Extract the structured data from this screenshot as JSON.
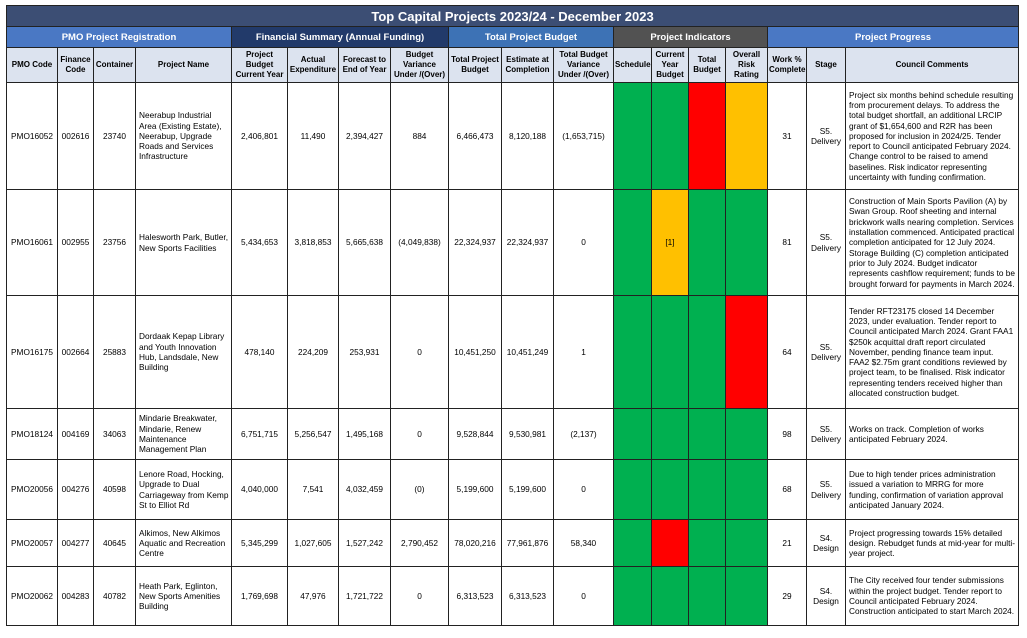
{
  "title": "Top Capital Projects 2023/24 - December 2023",
  "groups": {
    "registration": "PMO Project Registration",
    "financial": "Financial Summary (Annual Funding)",
    "total_budget": "Total Project Budget",
    "indicators": "Project Indicators",
    "progress": "Project Progress"
  },
  "columns": {
    "pmo_code": "PMO Code",
    "finance_code": "Finance Code",
    "container": "Container",
    "project_name": "Project Name",
    "budget_current_year": "Project Budget Current Year",
    "actual_expenditure": "Actual Expenditure",
    "forecast": "Forecast to End of Year",
    "budget_variance": "Budget Variance Under /(Over)",
    "total_project_budget": "Total Project Budget",
    "estimate_completion": "Estimate at Completion",
    "total_budget_variance": "Total Budget Variance Under /(Over)",
    "schedule": "Schedule",
    "current_year_budget": "Current Year Budget",
    "total_budget": "Total Budget",
    "overall_risk": "Overall Risk Rating",
    "work_complete": "Work % Complete",
    "stage": "Stage",
    "comments": "Council Comments"
  },
  "rows": [
    {
      "pmo": "PMO16052",
      "finance": "002616",
      "container": "23740",
      "name": "Neerabup Industrial Area (Existing Estate), Neerabup, Upgrade Roads and Services Infrastructure",
      "budget_cy": "2,406,801",
      "actual": "11,490",
      "forecast": "2,394,427",
      "variance": "884",
      "variance_neg": false,
      "total_budget": "6,466,473",
      "estimate": "8,120,188",
      "total_variance": "(1,653,715)",
      "total_variance_neg": true,
      "ind_schedule": "green",
      "ind_cy_budget": "green",
      "ind_total_budget": "red",
      "ind_risk": "amber",
      "ind_cy_note": "",
      "work": "31",
      "stage": "S5. Delivery",
      "comment": "Project six months behind schedule resulting from procurement delays. To address the total budget shortfall, an additional LRCIP grant of $1,654,600 and R2R has been proposed for inclusion in 2024/25. Tender report to Council anticipated February 2024. Change control to be raised to amend baselines. Risk indicator representing uncertainty with funding confirmation."
    },
    {
      "pmo": "PMO16061",
      "finance": "002955",
      "container": "23756",
      "name": "Halesworth Park, Butler, New Sports Facilities",
      "budget_cy": "5,434,653",
      "actual": "3,818,853",
      "forecast": "5,665,638",
      "variance": "(4,049,838)",
      "variance_neg": true,
      "total_budget": "22,324,937",
      "estimate": "22,324,937",
      "total_variance": "0",
      "total_variance_neg": false,
      "ind_schedule": "green",
      "ind_cy_budget": "amber",
      "ind_total_budget": "green",
      "ind_risk": "green",
      "ind_cy_note": "[1]",
      "work": "81",
      "stage": "S5. Delivery",
      "comment": "Construction of Main Sports Pavilion (A) by Swan Group. Roof sheeting and internal brickwork walls nearing completion. Services installation commenced. Anticipated practical completion anticipated for 12 July 2024. Storage Building (C) completion anticipated prior to July 2024. Budget indicator represents cashflow requirement; funds to be brought forward for payments in March 2024."
    },
    {
      "pmo": "PMO16175",
      "finance": "002664",
      "container": "25883",
      "name": "Dordaak Kepap Library and Youth Innovation Hub, Landsdale, New Building",
      "budget_cy": "478,140",
      "actual": "224,209",
      "forecast": "253,931",
      "variance": "0",
      "variance_neg": false,
      "total_budget": "10,451,250",
      "estimate": "10,451,249",
      "total_variance": "1",
      "total_variance_neg": false,
      "ind_schedule": "green",
      "ind_cy_budget": "green",
      "ind_total_budget": "green",
      "ind_risk": "red",
      "ind_cy_note": "",
      "work": "64",
      "stage": "S5. Delivery",
      "comment": "Tender RFT23175 closed 14 December 2023, under evaluation. Tender report to Council anticipated March 2024. Grant FAA1 $250k acquittal draft report circulated November, pending finance team input. FAA2 $2.75m grant conditions reviewed by project team, to be finalised. Risk indicator representing tenders received higher than allocated construction budget."
    },
    {
      "pmo": "PMO18124",
      "finance": "004169",
      "container": "34063",
      "name": "Mindarie Breakwater, Mindarie, Renew Maintenance Management Plan",
      "budget_cy": "6,751,715",
      "actual": "5,256,547",
      "forecast": "1,495,168",
      "variance": "0",
      "variance_neg": false,
      "total_budget": "9,528,844",
      "estimate": "9,530,981",
      "total_variance": "(2,137)",
      "total_variance_neg": true,
      "ind_schedule": "green",
      "ind_cy_budget": "green",
      "ind_total_budget": "green",
      "ind_risk": "green",
      "ind_cy_note": "",
      "work": "98",
      "stage": "S5. Delivery",
      "comment": "Works on track. Completion of works anticipated February 2024."
    },
    {
      "pmo": "PMO20056",
      "finance": "004276",
      "container": "40598",
      "name": "Lenore Road, Hocking, Upgrade to Dual Carriageway from Kemp St to Elliot Rd",
      "budget_cy": "4,040,000",
      "actual": "7,541",
      "forecast": "4,032,459",
      "variance": "(0)",
      "variance_neg": true,
      "total_budget": "5,199,600",
      "estimate": "5,199,600",
      "total_variance": "0",
      "total_variance_neg": false,
      "ind_schedule": "green",
      "ind_cy_budget": "green",
      "ind_total_budget": "green",
      "ind_risk": "green",
      "ind_cy_note": "",
      "work": "68",
      "stage": "S5. Delivery",
      "comment": "Due to high tender prices administration issued a variation to MRRG for more funding, confirmation of variation approval anticipated January 2024."
    },
    {
      "pmo": "PMO20057",
      "finance": "004277",
      "container": "40645",
      "name": "Alkimos, New Alkimos Aquatic and Recreation Centre",
      "budget_cy": "5,345,299",
      "actual": "1,027,605",
      "forecast": "1,527,242",
      "variance": "2,790,452",
      "variance_neg": false,
      "total_budget": "78,020,216",
      "estimate": "77,961,876",
      "total_variance": "58,340",
      "total_variance_neg": false,
      "ind_schedule": "green",
      "ind_cy_budget": "red",
      "ind_total_budget": "green",
      "ind_risk": "green",
      "ind_cy_note": "",
      "work": "21",
      "stage": "S4. Design",
      "comment": "Project progressing towards 15% detailed design. Rebudget funds at mid-year for multi-year project."
    },
    {
      "pmo": "PMO20062",
      "finance": "004283",
      "container": "40782",
      "name": "Heath Park, Eglinton, New Sports Amenities Building",
      "budget_cy": "1,769,698",
      "actual": "47,976",
      "forecast": "1,721,722",
      "variance": "0",
      "variance_neg": false,
      "total_budget": "6,313,523",
      "estimate": "6,313,523",
      "total_variance": "0",
      "total_variance_neg": false,
      "ind_schedule": "green",
      "ind_cy_budget": "green",
      "ind_total_budget": "green",
      "ind_risk": "green",
      "ind_cy_note": "",
      "work": "29",
      "stage": "S4. Design",
      "comment": "The City received four tender submissions within the project budget. Tender report to Council anticipated February 2024. Construction anticipated to start March 2024."
    }
  ]
}
